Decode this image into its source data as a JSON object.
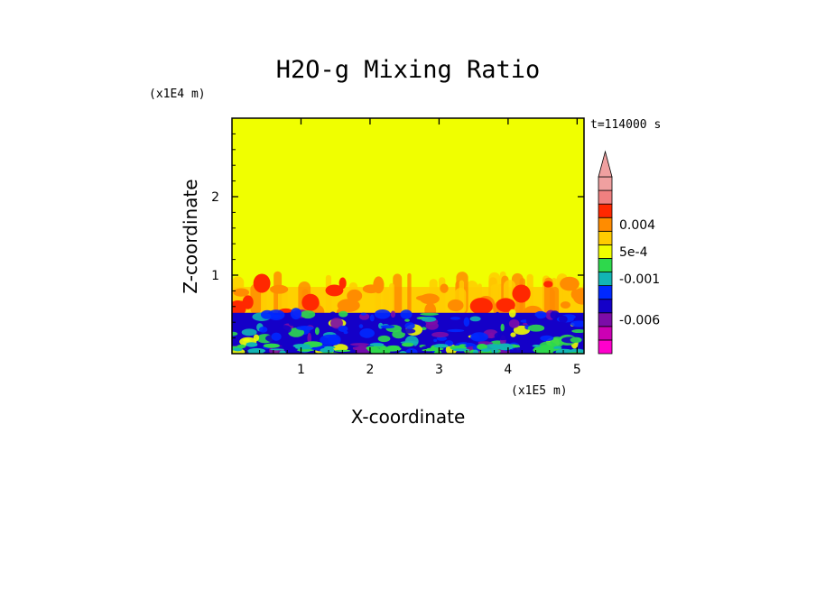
{
  "chart_data": {
    "type": "heatmap",
    "title": "H2O-g Mixing Ratio",
    "xlabel": "X-coordinate",
    "ylabel": "Z-coordinate",
    "x_scale_label": "(x1E5 m)",
    "y_scale_label": "(x1E4 m)",
    "time_label": "t=114000 s",
    "xlim": [
      0,
      5.1
    ],
    "ylim": [
      0,
      3.0
    ],
    "x_ticks": [
      1,
      2,
      3,
      4,
      5
    ],
    "y_ticks": [
      1,
      2
    ],
    "colorbar": {
      "colors": [
        "#ff00cc",
        "#cc00b4",
        "#7c0ca8",
        "#1400c8",
        "#0028ff",
        "#12b4b4",
        "#2ed84c",
        "#f0ff00",
        "#ffcc00",
        "#ff8c00",
        "#ff2800",
        "#f08080",
        "#f0a0a0"
      ],
      "labels": [
        {
          "text": "-0.006",
          "value": -0.006
        },
        {
          "text": "-0.001",
          "value": -0.001
        },
        {
          "text": "5e-4",
          "value": 0.0005
        },
        {
          "text": "0.004",
          "value": 0.004
        }
      ],
      "extend_max": true
    },
    "field_layers": [
      {
        "name": "",
        "z_range": [
          0.55,
          3.0
        ],
        "dominant": "#f0ff00"
      },
      {
        "name": "",
        "z_range": [
          0.5,
          1.05
        ],
        "dominant": "#ffcc00"
      },
      {
        "name": "",
        "z_range": [
          0,
          0.55
        ],
        "dominant": "#1400c8"
      }
    ]
  }
}
